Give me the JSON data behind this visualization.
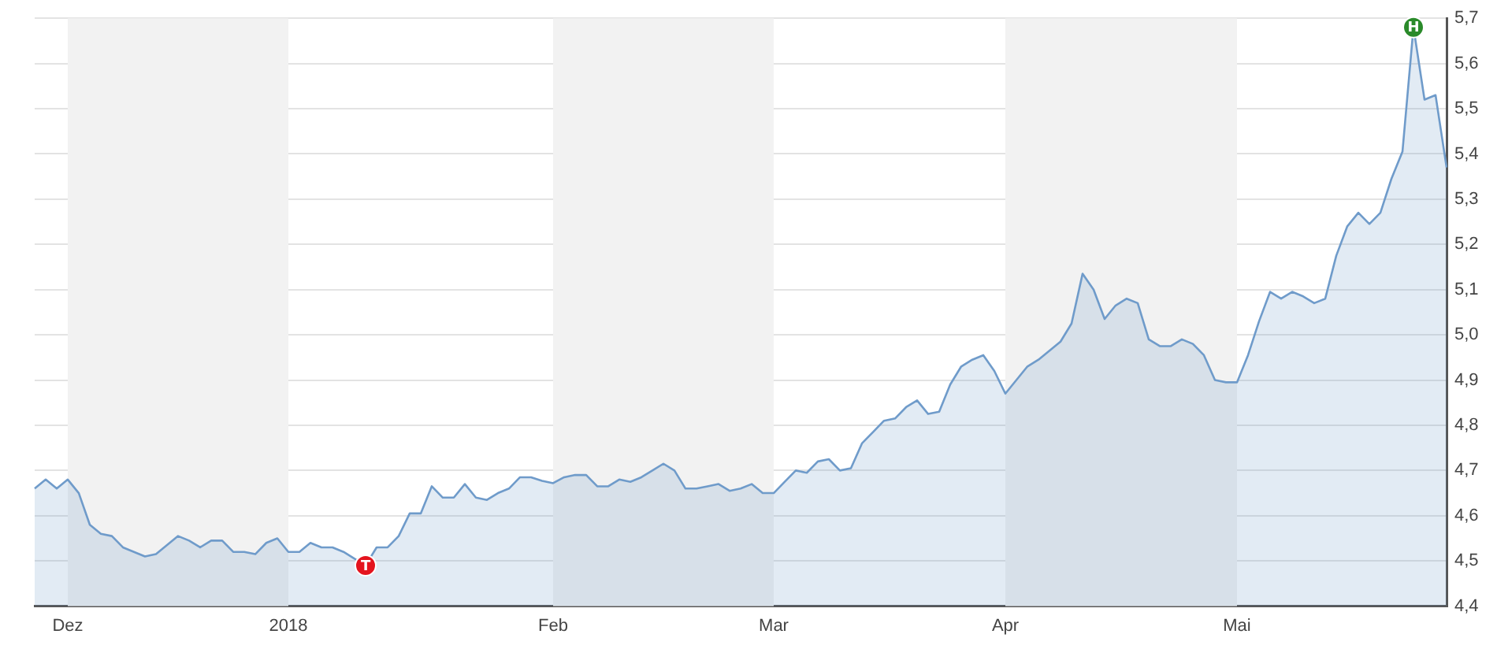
{
  "chart_data": {
    "type": "area",
    "categories": [
      null,
      null,
      null,
      "Dez",
      null,
      null,
      null,
      null,
      null,
      null,
      null,
      null,
      null,
      null,
      null,
      null,
      null,
      null,
      null,
      null,
      null,
      null,
      null,
      "2018",
      null,
      null,
      null,
      null,
      null,
      null,
      null,
      null,
      null,
      null,
      null,
      null,
      null,
      null,
      null,
      null,
      null,
      null,
      null,
      null,
      null,
      null,
      null,
      "Feb",
      null,
      null,
      null,
      null,
      null,
      null,
      null,
      null,
      null,
      null,
      null,
      null,
      null,
      null,
      null,
      null,
      null,
      null,
      null,
      "Mar",
      null,
      null,
      null,
      null,
      null,
      null,
      null,
      null,
      null,
      null,
      null,
      null,
      null,
      null,
      null,
      null,
      null,
      null,
      null,
      null,
      "Apr",
      null,
      null,
      null,
      null,
      null,
      null,
      null,
      null,
      null,
      null,
      null,
      null,
      null,
      null,
      null,
      null,
      null,
      null,
      null,
      null,
      "Mai",
      null,
      null,
      null,
      null,
      null,
      null,
      null,
      null,
      null,
      null,
      null,
      null,
      null,
      null,
      null,
      null,
      null,
      null,
      null
    ],
    "series": [
      {
        "color": "#6f9bca",
        "values": [
          4.66,
          4.68,
          4.66,
          4.68,
          4.65,
          4.58,
          4.56,
          4.555,
          4.53,
          4.52,
          4.51,
          4.515,
          4.535,
          4.555,
          4.545,
          4.53,
          4.545,
          4.545,
          4.52,
          4.52,
          4.515,
          4.54,
          4.55,
          4.52,
          4.52,
          4.54,
          4.53,
          4.53,
          4.52,
          4.505,
          4.49,
          4.53,
          4.53,
          4.555,
          4.605,
          4.605,
          4.665,
          4.64,
          4.64,
          4.67,
          4.64,
          4.635,
          4.65,
          4.66,
          4.685,
          4.685,
          4.677,
          4.672,
          4.685,
          4.69,
          4.69,
          4.665,
          4.665,
          4.68,
          4.675,
          4.685,
          4.7,
          4.715,
          4.7,
          4.66,
          4.66,
          4.665,
          4.67,
          4.655,
          4.66,
          4.67,
          4.65,
          4.65,
          4.675,
          4.7,
          4.695,
          4.72,
          4.725,
          4.7,
          4.705,
          4.76,
          4.785,
          4.81,
          4.815,
          4.84,
          4.855,
          4.825,
          4.83,
          4.89,
          4.93,
          4.945,
          4.955,
          4.92,
          4.87,
          4.9,
          4.93,
          4.945,
          4.965,
          4.985,
          5.025,
          5.135,
          5.1,
          5.035,
          5.065,
          5.08,
          5.07,
          4.99,
          4.975,
          4.975,
          4.99,
          4.98,
          4.955,
          4.9,
          4.895,
          4.895,
          4.955,
          5.03,
          5.095,
          5.08,
          5.095,
          5.085,
          5.07,
          5.08,
          5.175,
          5.24,
          5.27,
          5.245,
          5.27,
          5.345,
          5.405,
          5.68,
          5.52,
          5.53,
          5.37
        ]
      }
    ],
    "ylim": [
      4.4,
      5.7
    ],
    "yticks": [
      {
        "value": 4.4,
        "label": "4,4"
      },
      {
        "value": 4.5,
        "label": "4,5"
      },
      {
        "value": 4.6,
        "label": "4,6"
      },
      {
        "value": 4.7,
        "label": "4,7"
      },
      {
        "value": 4.8,
        "label": "4,8"
      },
      {
        "value": 4.9,
        "label": "4,9"
      },
      {
        "value": 5.0,
        "label": "5,0"
      },
      {
        "value": 5.1,
        "label": "5,1"
      },
      {
        "value": 5.2,
        "label": "5,2"
      },
      {
        "value": 5.3,
        "label": "5,3"
      },
      {
        "value": 5.4,
        "label": "5,4"
      },
      {
        "value": 5.5,
        "label": "5,5"
      },
      {
        "value": 5.6,
        "label": "5,6"
      },
      {
        "value": 5.7,
        "label": "5,7"
      }
    ],
    "grid": "y",
    "legend": false,
    "bands": [
      {
        "axis": "x",
        "from": "Dez",
        "to": "2018",
        "color": "#f2f2f2"
      },
      {
        "axis": "x",
        "from": "Feb",
        "to": "Mar",
        "color": "#f2f2f2"
      },
      {
        "axis": "x",
        "from": "Apr",
        "to": "Mai",
        "color": "#f2f2f2"
      }
    ],
    "annotations": [
      {
        "text": "T",
        "y": 4.49
      },
      {
        "text": "H",
        "y": 5.68
      }
    ]
  }
}
